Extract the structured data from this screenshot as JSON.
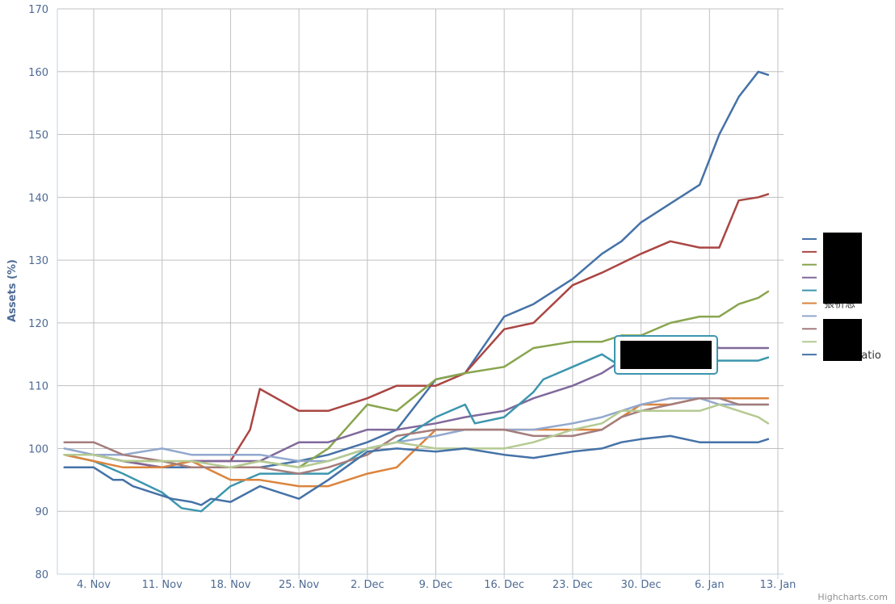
{
  "chart_data": {
    "type": "line",
    "title": "",
    "xlabel": "",
    "ylabel": "Assets (%)",
    "ylim": [
      80,
      170
    ],
    "y_ticks": [
      80,
      90,
      100,
      110,
      120,
      130,
      140,
      150,
      160,
      170
    ],
    "x_ticks": [
      "4. Nov",
      "11. Nov",
      "18. Nov",
      "25. Nov",
      "2. Dec",
      "9. Dec",
      "16. Dec",
      "23. Dec",
      "30. Dec",
      "6. Jan",
      "13. Jan"
    ],
    "xlim": [
      -3.3,
      69
    ],
    "grid": true,
    "legend_position": "right",
    "series": [
      {
        "name": "",
        "color": "#4572A7",
        "x": [
          -3,
          0,
          3,
          7,
          10,
          14,
          17,
          21,
          24,
          28,
          31,
          35,
          38,
          42,
          45,
          49,
          52,
          54,
          56,
          59,
          62,
          64,
          66,
          68,
          69
        ],
        "y": [
          99,
          99,
          98,
          97,
          97,
          97,
          97,
          98,
          99,
          101,
          103,
          111,
          112,
          121,
          123,
          127,
          131,
          133,
          136,
          139,
          142,
          150,
          156,
          160,
          159.5
        ]
      },
      {
        "name": "",
        "color": "#AA4643",
        "x": [
          -3,
          0,
          3,
          7,
          10,
          14,
          16,
          17,
          21,
          24,
          28,
          31,
          35,
          38,
          42,
          45,
          49,
          52,
          54,
          56,
          59,
          62,
          64,
          66,
          68,
          69
        ],
        "y": [
          99,
          99,
          98,
          97,
          98,
          98,
          103,
          109.5,
          106,
          106,
          108,
          110,
          110,
          112,
          119,
          120,
          126,
          128,
          129.5,
          131,
          133,
          132,
          132,
          139.5,
          140,
          140.5
        ]
      },
      {
        "name": "",
        "color": "#89A54E",
        "x": [
          -3,
          0,
          3,
          7,
          10,
          14,
          17,
          21,
          24,
          28,
          31,
          35,
          38,
          42,
          45,
          49,
          52,
          54,
          56,
          59,
          62,
          64,
          66,
          68,
          69
        ],
        "y": [
          99,
          99,
          98,
          98,
          97,
          97,
          98,
          97,
          100,
          107,
          106,
          111,
          112,
          113,
          116,
          117,
          117,
          118,
          118,
          120,
          121,
          121,
          123,
          124,
          125
        ]
      },
      {
        "name": "",
        "color": "#80699B",
        "x": [
          -3,
          0,
          3,
          7,
          10,
          14,
          17,
          21,
          24,
          28,
          31,
          35,
          38,
          42,
          45,
          49,
          52,
          54,
          56,
          59,
          62,
          64,
          66,
          68,
          69
        ],
        "y": [
          99,
          99,
          98,
          97,
          98,
          98,
          98,
          101,
          101,
          103,
          103,
          104,
          105,
          106,
          108,
          110,
          112,
          114,
          116,
          117,
          117,
          116,
          116,
          116,
          116
        ]
      },
      {
        "name": "",
        "color": "#3D96AE",
        "x": [
          -3,
          0,
          3,
          7,
          9,
          11,
          14,
          17,
          21,
          24,
          28,
          31,
          35,
          38,
          39,
          42,
          45,
          46,
          49,
          52,
          54,
          56,
          59,
          62,
          64,
          66,
          68,
          69
        ],
        "y": [
          99,
          98,
          96,
          93,
          90.5,
          90,
          94,
          96,
          96,
          96,
          100,
          101,
          105,
          107,
          104,
          105,
          109,
          111,
          113,
          115,
          113,
          114,
          114,
          114,
          114,
          114,
          114,
          114.5
        ]
      },
      {
        "name": "張祈恩",
        "color": "#DB843D",
        "x": [
          -3,
          0,
          3,
          7,
          10,
          14,
          17,
          21,
          24,
          28,
          31,
          35,
          38,
          42,
          45,
          49,
          52,
          54,
          56,
          59,
          62,
          64,
          66,
          68,
          69
        ],
        "y": [
          99,
          98,
          97,
          97,
          98,
          95,
          95,
          94,
          94,
          96,
          97,
          103,
          103,
          103,
          103,
          103,
          103,
          105,
          107,
          107,
          108,
          108,
          108,
          108,
          108
        ]
      },
      {
        "name": "",
        "color": "#92A8CD",
        "x": [
          -3,
          0,
          3,
          7,
          10,
          14,
          17,
          21,
          24,
          28,
          31,
          35,
          38,
          42,
          45,
          49,
          52,
          54,
          56,
          59,
          62,
          64,
          66,
          68,
          69
        ],
        "y": [
          100,
          99,
          99,
          100,
          99,
          99,
          99,
          98,
          98,
          100,
          101,
          102,
          103,
          103,
          103,
          104,
          105,
          106,
          107,
          108,
          108,
          107,
          107,
          107,
          107
        ]
      },
      {
        "name": "",
        "color": "#A47D7C",
        "x": [
          -3,
          0,
          3,
          7,
          10,
          14,
          17,
          21,
          24,
          28,
          31,
          35,
          38,
          42,
          45,
          49,
          52,
          54,
          56,
          59,
          62,
          64,
          66,
          68,
          69
        ],
        "y": [
          101,
          101,
          99,
          98,
          97,
          97,
          97,
          96,
          97,
          99,
          102,
          103,
          103,
          103,
          102,
          102,
          103,
          105,
          106,
          107,
          108,
          108,
          107,
          107,
          107
        ]
      },
      {
        "name": "",
        "color": "#B5CA92",
        "x": [
          -3,
          0,
          3,
          7,
          10,
          14,
          17,
          21,
          24,
          28,
          31,
          35,
          38,
          42,
          45,
          49,
          52,
          54,
          56,
          59,
          62,
          64,
          66,
          68,
          69
        ],
        "y": [
          99,
          99,
          98,
          98,
          98,
          97,
          98,
          97,
          98,
          100,
          101,
          100,
          100,
          100,
          101,
          103,
          104,
          106,
          106,
          106,
          106,
          107,
          106,
          105,
          104
        ]
      },
      {
        "name": "TAIEX ratio",
        "color": "#4572A7",
        "x": [
          -3,
          0,
          1,
          2,
          3,
          4,
          6,
          8,
          10,
          11,
          12,
          14,
          17,
          21,
          24,
          28,
          31,
          35,
          38,
          42,
          45,
          49,
          52,
          54,
          56,
          59,
          62,
          64,
          66,
          68,
          69
        ],
        "y": [
          97,
          97,
          96,
          95,
          95,
          94,
          93,
          92,
          91.5,
          91,
          92,
          91.5,
          94,
          92,
          95,
          99.5,
          100,
          99.5,
          100,
          99,
          98.5,
          99.5,
          100,
          101,
          101.5,
          102,
          101,
          101,
          101,
          101,
          101.5
        ]
      }
    ]
  },
  "tooltip": {
    "text": "█"
  },
  "credits": "Highcharts.com"
}
